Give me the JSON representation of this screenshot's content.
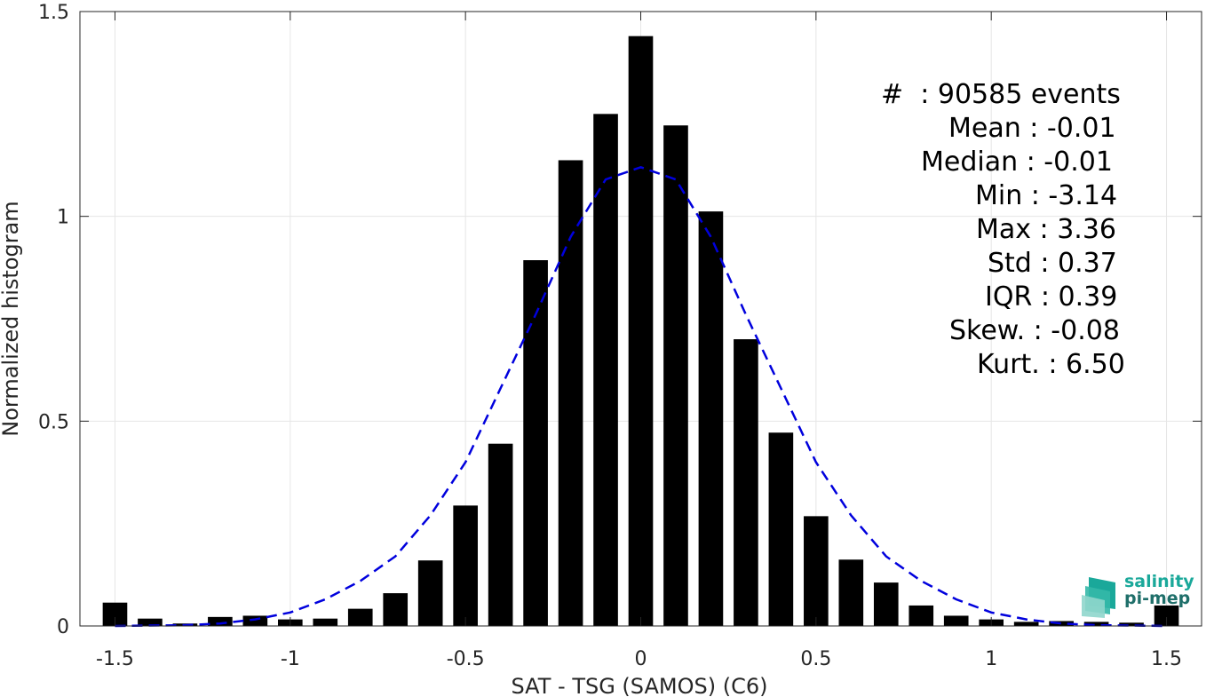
{
  "colors": {
    "bars": "#000000",
    "curve": "#0000dd",
    "grid": "#e6e6e6",
    "axis": "#262626",
    "logo_top": "#1aa89a",
    "logo_bottom": "#1f6f6a"
  },
  "chart_data": {
    "type": "bar",
    "title": "",
    "xlabel": "SAT - TSG (SAMOS) (C6)",
    "ylabel": "Normalized histogram",
    "xlim": [
      -1.6,
      1.6
    ],
    "ylim": [
      0,
      1.5
    ],
    "grid": true,
    "xticks": [
      -1.5,
      -1,
      -0.5,
      0,
      0.5,
      1,
      1.5
    ],
    "xtick_labels": [
      "-1.5",
      "-1",
      "-0.5",
      "0",
      "0.5",
      "1",
      "1.5"
    ],
    "yticks": [
      0,
      0.5,
      1,
      1.5
    ],
    "ytick_labels": [
      "0",
      "0.5",
      "1",
      "1.5"
    ],
    "bar_width": 0.07,
    "x": [
      -1.5,
      -1.4,
      -1.3,
      -1.2,
      -1.1,
      -1.0,
      -0.9,
      -0.8,
      -0.7,
      -0.6,
      -0.5,
      -0.4,
      -0.3,
      -0.2,
      -0.1,
      0.0,
      0.1,
      0.2,
      0.3,
      0.4,
      0.5,
      0.6,
      0.7,
      0.8,
      0.9,
      1.0,
      1.1,
      1.2,
      1.3,
      1.4,
      1.5
    ],
    "values": [
      0.057,
      0.018,
      0.006,
      0.022,
      0.025,
      0.016,
      0.018,
      0.042,
      0.08,
      0.16,
      0.294,
      0.445,
      0.893,
      1.137,
      1.25,
      1.44,
      1.222,
      1.012,
      0.7,
      0.472,
      0.268,
      0.162,
      0.106,
      0.05,
      0.025,
      0.016,
      0.01,
      0.012,
      0.01,
      0.008,
      0.05
    ],
    "curve": {
      "style": "dashed",
      "x": [
        -1.5,
        -1.4,
        -1.3,
        -1.2,
        -1.1,
        -1.0,
        -0.9,
        -0.8,
        -0.7,
        -0.6,
        -0.5,
        -0.4,
        -0.3,
        -0.2,
        -0.1,
        0.0,
        0.1,
        0.2,
        0.3,
        0.4,
        0.5,
        0.6,
        0.7,
        0.8,
        0.9,
        1.0,
        1.1,
        1.2,
        1.3,
        1.4,
        1.5
      ],
      "y": [
        0.0,
        0.001,
        0.002,
        0.006,
        0.016,
        0.033,
        0.065,
        0.11,
        0.17,
        0.27,
        0.4,
        0.58,
        0.76,
        0.95,
        1.09,
        1.12,
        1.09,
        0.95,
        0.76,
        0.58,
        0.4,
        0.27,
        0.17,
        0.11,
        0.065,
        0.033,
        0.016,
        0.006,
        0.002,
        0.001,
        0.0
      ]
    }
  },
  "stats": {
    "events": "#  : 90585 events",
    "mean": "Mean : -0.01",
    "median": "Median : -0.01",
    "min": "Min : -3.14",
    "max": "Max : 3.36",
    "std": "Std : 0.37",
    "iqr": "IQR : 0.39",
    "skew": "Skew. : -0.08",
    "kurt": "Kurt. : 6.50"
  },
  "logo": {
    "line1": "salinity",
    "line2": "pi-mep"
  }
}
